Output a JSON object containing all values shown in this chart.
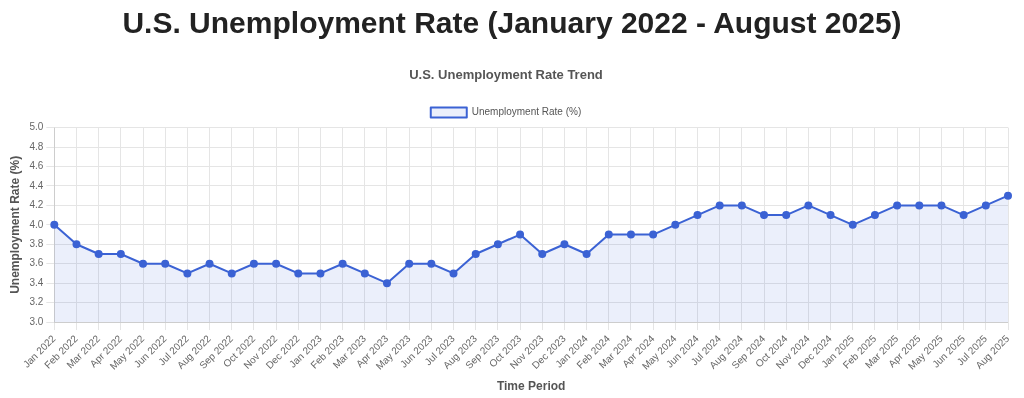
{
  "chart_data": {
    "type": "area",
    "title": "U.S. Unemployment Rate (January 2022 - August 2025)",
    "subtitle": "U.S. Unemployment Rate Trend",
    "xlabel": "Time Period",
    "ylabel": "Unemployment Rate (%)",
    "categories": [
      "Jan 2022",
      "Feb 2022",
      "Mar 2022",
      "Apr 2022",
      "May 2022",
      "Jun 2022",
      "Jul 2022",
      "Aug 2022",
      "Sep 2022",
      "Oct 2022",
      "Nov 2022",
      "Dec 2022",
      "Jan 2023",
      "Feb 2023",
      "Mar 2023",
      "Apr 2023",
      "May 2023",
      "Jun 2023",
      "Jul 2023",
      "Aug 2023",
      "Sep 2023",
      "Oct 2023",
      "Nov 2023",
      "Dec 2023",
      "Jan 2024",
      "Feb 2024",
      "Mar 2024",
      "Apr 2024",
      "May 2024",
      "Jun 2024",
      "Jul 2024",
      "Aug 2024",
      "Sep 2024",
      "Oct 2024",
      "Nov 2024",
      "Dec 2024",
      "Jan 2025",
      "Feb 2025",
      "Mar 2025",
      "Apr 2025",
      "May 2025",
      "Jun 2025",
      "Jul 2025",
      "Aug 2025"
    ],
    "series": [
      {
        "name": "Unemployment Rate (%)",
        "color": "#3b62d4",
        "values": [
          4.0,
          3.8,
          3.7,
          3.7,
          3.6,
          3.6,
          3.5,
          3.6,
          3.5,
          3.6,
          3.6,
          3.5,
          3.5,
          3.6,
          3.5,
          3.4,
          3.6,
          3.6,
          3.5,
          3.7,
          3.8,
          3.9,
          3.7,
          3.8,
          3.7,
          3.9,
          3.9,
          3.9,
          4.0,
          4.1,
          4.2,
          4.2,
          4.1,
          4.1,
          4.2,
          4.1,
          4.0,
          4.1,
          4.2,
          4.2,
          4.2,
          4.1,
          4.2,
          4.3
        ]
      }
    ],
    "ylim": [
      3.0,
      5.0
    ],
    "yticks": [
      {
        "value": 3,
        "label": "3.0"
      },
      3.2,
      3.4,
      3.6,
      3.8,
      {
        "value": 4,
        "label": "4.0"
      },
      4.2,
      4.4,
      4.6,
      4.8,
      {
        "value": 5,
        "label": "5.0"
      }
    ],
    "grid": true,
    "legend": "top",
    "marker": "circle",
    "line_style": "solid"
  }
}
